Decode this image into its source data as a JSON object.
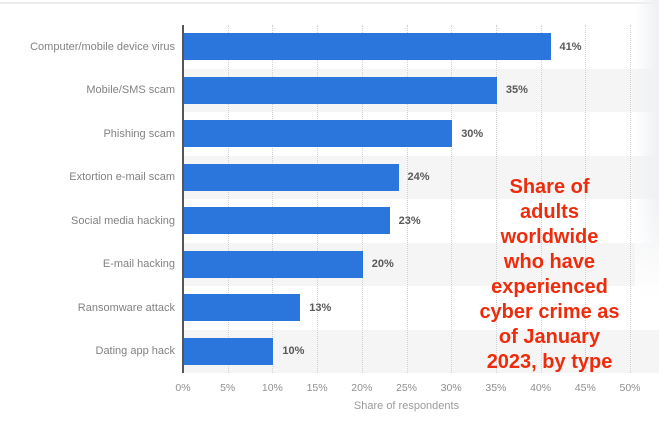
{
  "chart_data": {
    "type": "bar",
    "orientation": "horizontal",
    "categories": [
      "Computer/mobile device virus",
      "Mobile/SMS scam",
      "Phishing scam",
      "Extortion e-mail scam",
      "Social media hacking",
      "E-mail hacking",
      "Ransomware attack",
      "Dating app hack"
    ],
    "values": [
      41,
      35,
      30,
      24,
      23,
      20,
      13,
      10
    ],
    "value_labels": [
      "41%",
      "35%",
      "30%",
      "24%",
      "23%",
      "20%",
      "13%",
      "10%"
    ],
    "xlabel": "Share of respondents",
    "x_ticks": [
      "0%",
      "5%",
      "10%",
      "15%",
      "20%",
      "25%",
      "30%",
      "35%",
      "40%",
      "45%",
      "50%"
    ],
    "xlim": [
      0,
      50
    ],
    "grid": "vertical dotted gridlines every 5%",
    "legend": "none",
    "row_striping": "alternating rows shaded, 2nd/4th/6th/8th",
    "annotation": {
      "text": "Share of adults worldwide who have experienced cyber crime as of January 2023, by type",
      "lines": [
        "Share of",
        "adults",
        "worldwide",
        "who have",
        "experienced",
        "cyber crime as",
        "of January",
        "2023, by type"
      ],
      "color": "#ee2c0c"
    },
    "colors": {
      "bar": "#2b76dd",
      "row_stripe": "#f5f5f5",
      "gridline": "#d0d0d0",
      "axis_line": "#55565b",
      "category_label": "#828282",
      "value_label": "#585858",
      "tick_label": "#8f8f8f",
      "xlabel": "#9b9b9b",
      "top_border": "#ececec"
    }
  }
}
